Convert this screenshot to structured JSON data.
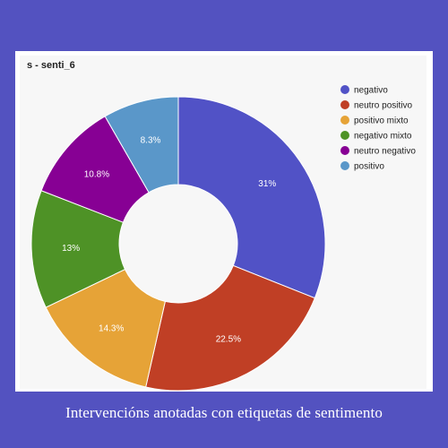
{
  "caption": "Intervencións anotadas con etiquetas de sentimento",
  "chart_data": {
    "type": "pie",
    "donut": true,
    "title": "s - senti_6",
    "slices": [
      {
        "name": "negativo",
        "value": 31,
        "label": "31%",
        "color": "#5152c6"
      },
      {
        "name": "neutro positivo",
        "value": 22.5,
        "label": "22.5%",
        "color": "#c03f25"
      },
      {
        "name": "positivo mixto",
        "value": 14.3,
        "label": "14.3%",
        "color": "#e6a337"
      },
      {
        "name": "negativo mixto",
        "value": 13,
        "label": "13%",
        "color": "#4e9226"
      },
      {
        "name": "neutro negativo",
        "value": 10.8,
        "label": "10.8%",
        "color": "#870094"
      },
      {
        "name": "positivo",
        "value": 8.3,
        "label": "8.3%",
        "color": "#5a97c9"
      }
    ],
    "legend_position": "right"
  }
}
